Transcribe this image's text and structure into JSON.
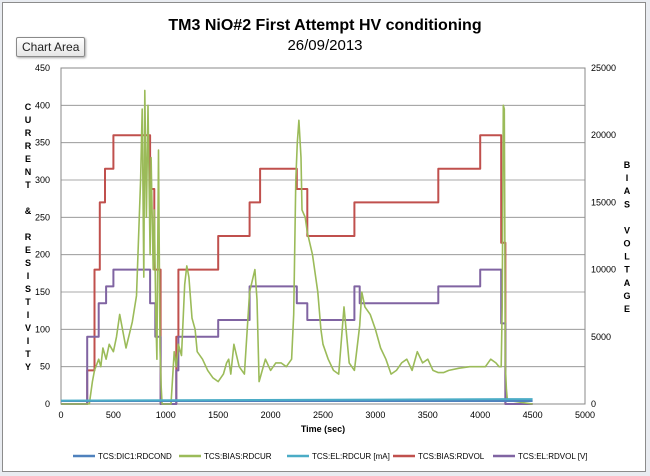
{
  "tooltip": "Chart Area",
  "chart_data": {
    "type": "line",
    "title": "TM3 NiO#2 First Attempt HV conditioning",
    "subtitle": "26/09/2013",
    "xlabel": "Time (sec)",
    "ylabel_left": "CURRENT & RESISTIVITY",
    "ylabel_right": "BIAS VOLTAGE",
    "xlim": [
      0,
      5000
    ],
    "ylim_left": [
      0,
      450
    ],
    "ylim_right": [
      0,
      25000
    ],
    "xticks": [
      0,
      500,
      1000,
      1500,
      2000,
      2500,
      3000,
      3500,
      4000,
      4500,
      5000
    ],
    "yticks_left": [
      0,
      50,
      100,
      150,
      200,
      250,
      300,
      350,
      400,
      450
    ],
    "yticks_right": [
      0,
      5000,
      10000,
      15000,
      20000,
      25000
    ],
    "grid": "horizontal",
    "legend_position": "bottom",
    "series": [
      {
        "name": "TCS:DIC1:RDCOND",
        "axis": "left",
        "color": "#4f81bd",
        "x": [
          0,
          4500
        ],
        "y": [
          4,
          4
        ]
      },
      {
        "name": "TCS:BIAS:RDCUR",
        "axis": "left",
        "color": "#9bbb59",
        "x": [
          0,
          270,
          300,
          320,
          360,
          380,
          400,
          430,
          460,
          500,
          530,
          560,
          620,
          680,
          720,
          760,
          775,
          790,
          800,
          815,
          830,
          850,
          860,
          880,
          890,
          905,
          915,
          930,
          945,
          955,
          965,
          1000,
          1050,
          1080,
          1100,
          1120,
          1150,
          1180,
          1200,
          1220,
          1250,
          1280,
          1300,
          1350,
          1400,
          1450,
          1500,
          1550,
          1580,
          1600,
          1620,
          1650,
          1700,
          1750,
          1800,
          1850,
          1870,
          1890,
          1910,
          1950,
          2000,
          2050,
          2100,
          2150,
          2200,
          2220,
          2240,
          2255,
          2270,
          2290,
          2300,
          2330,
          2350,
          2400,
          2450,
          2480,
          2500,
          2550,
          2600,
          2650,
          2700,
          2750,
          2800,
          2850,
          2870,
          2900,
          2950,
          3000,
          3050,
          3100,
          3150,
          3200,
          3250,
          3300,
          3350,
          3400,
          3450,
          3500,
          3550,
          3600,
          3650,
          3700,
          3800,
          3900,
          4000,
          4050,
          4100,
          4150,
          4180,
          4200,
          4210,
          4220,
          4230,
          4240,
          4250,
          4260,
          4500
        ],
        "y": [
          0,
          0,
          30,
          45,
          60,
          50,
          75,
          60,
          80,
          70,
          90,
          120,
          75,
          110,
          145,
          300,
          395,
          170,
          420,
          250,
          400,
          200,
          330,
          180,
          260,
          120,
          60,
          340,
          75,
          25,
          0,
          0,
          0,
          70,
          50,
          80,
          65,
          160,
          185,
          170,
          115,
          100,
          70,
          60,
          45,
          35,
          30,
          40,
          55,
          60,
          40,
          80,
          50,
          40,
          150,
          180,
          140,
          30,
          40,
          60,
          45,
          55,
          55,
          50,
          60,
          120,
          300,
          350,
          380,
          330,
          260,
          250,
          230,
          200,
          150,
          100,
          80,
          60,
          45,
          40,
          130,
          55,
          45,
          105,
          150,
          130,
          120,
          100,
          75,
          60,
          40,
          45,
          55,
          60,
          45,
          70,
          55,
          60,
          45,
          42,
          42,
          45,
          48,
          50,
          50,
          50,
          60,
          55,
          50,
          50,
          130,
          400,
          395,
          50,
          20,
          5,
          0
        ]
      },
      {
        "name": "TCS:EL:RDCUR [mA]",
        "axis": "left",
        "color": "#4bacc6",
        "x": [
          0,
          4500
        ],
        "y": [
          4.5,
          6.5
        ]
      },
      {
        "name": "TCS:BIAS:RDVOL",
        "axis": "right",
        "color": "#c0504d",
        "x": [
          0,
          250,
          250,
          320,
          320,
          370,
          370,
          420,
          420,
          500,
          500,
          850,
          850,
          890,
          890,
          950,
          950,
          1000,
          1000,
          1100,
          1100,
          1120,
          1120,
          1500,
          1500,
          1800,
          1800,
          1900,
          1900,
          2250,
          2250,
          2350,
          2350,
          2800,
          2800,
          2850,
          2850,
          3600,
          3600,
          4000,
          4000,
          4200,
          4200,
          4240,
          4240,
          4500
        ],
        "y": [
          0,
          0,
          2500,
          2500,
          10000,
          10000,
          15000,
          15000,
          17500,
          17500,
          20000,
          20000,
          16000,
          16000,
          10000,
          10000,
          0,
          0,
          0,
          0,
          5000,
          5000,
          10000,
          10000,
          12500,
          12500,
          15000,
          15000,
          17500,
          17500,
          16000,
          16000,
          12500,
          12500,
          15000,
          15000,
          15000,
          15000,
          17500,
          17500,
          20000,
          20000,
          12000,
          12000,
          0,
          0
        ]
      },
      {
        "name": "TCS:EL:RDVOL [V]",
        "axis": "right",
        "color": "#8064a2",
        "x": [
          0,
          250,
          250,
          360,
          360,
          430,
          430,
          500,
          500,
          850,
          850,
          900,
          900,
          950,
          950,
          1100,
          1100,
          1120,
          1120,
          1500,
          1500,
          1800,
          1800,
          2250,
          2250,
          2350,
          2350,
          2800,
          2800,
          2850,
          2850,
          3600,
          3600,
          4000,
          4000,
          4200,
          4200,
          4240,
          4240,
          4500
        ],
        "y": [
          0,
          0,
          5000,
          5000,
          7500,
          7500,
          8750,
          8750,
          10000,
          10000,
          7500,
          7500,
          5000,
          5000,
          0,
          0,
          2500,
          2500,
          5000,
          5000,
          6250,
          6250,
          8750,
          8750,
          7500,
          7500,
          6250,
          6250,
          8750,
          8750,
          7500,
          7500,
          8750,
          8750,
          10000,
          10000,
          6000,
          6000,
          0,
          0
        ]
      }
    ]
  }
}
